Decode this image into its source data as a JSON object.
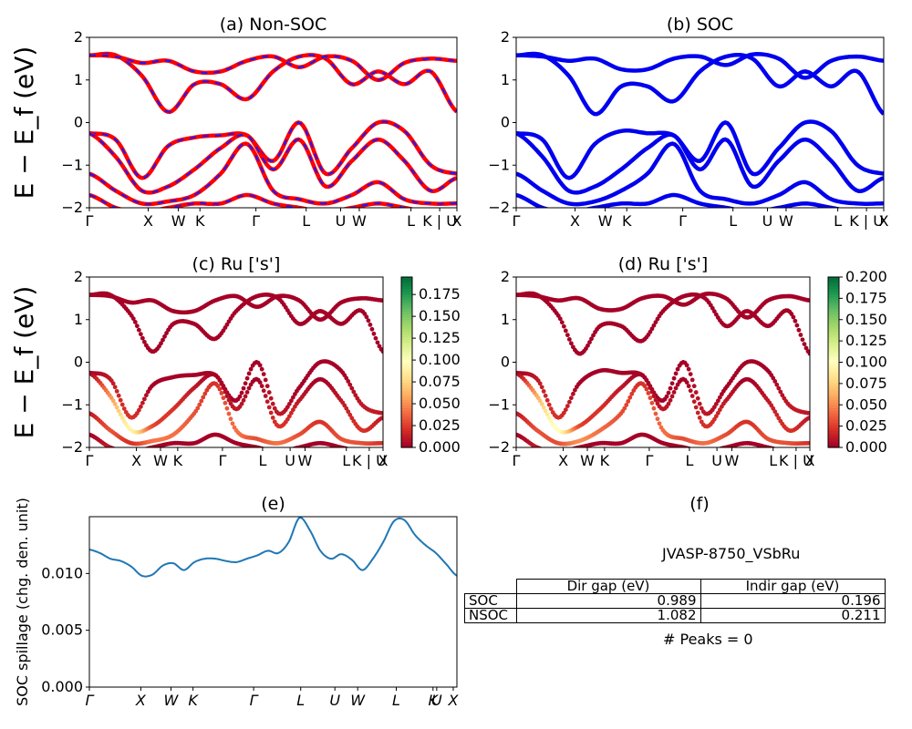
{
  "colors": {
    "nonsoc_a": "#ff0000",
    "nonsoc_b": "#1a1aff",
    "soc": "#0000ee",
    "spillage": "#1f77b4"
  },
  "colorbars": {
    "c": {
      "ticks": [
        "0.000",
        "0.025",
        "0.050",
        "0.075",
        "0.100",
        "0.125",
        "0.150",
        "0.175"
      ],
      "vmax": 0.195,
      "cmap": "RdYlGn"
    },
    "d": {
      "ticks": [
        "0.000",
        "0.025",
        "0.050",
        "0.075",
        "0.100",
        "0.125",
        "0.150",
        "0.175",
        "0.200"
      ],
      "vmax": 0.2,
      "cmap": "RdYlGn"
    }
  },
  "chart_data": [
    {
      "type": "line",
      "title": "(a) Non-SOC",
      "ylabel": "E − E_f (eV)",
      "ylim": [
        -2,
        2
      ],
      "yticks": [
        "2",
        "1",
        "0",
        "−1",
        "−2"
      ],
      "xticks": [
        "Γ",
        "X",
        "W",
        "K",
        "Γ",
        "L",
        "U",
        "W",
        "L",
        "K | U",
        "X"
      ],
      "series": [
        {
          "values": [
            1.58,
            1.58,
            1.1,
            0.25,
            0.9,
            0.9,
            0.55,
            1.2,
            1.55,
            1.5,
            0.9,
            1.2,
            0.9,
            1.2,
            0.25
          ]
        },
        {
          "values": [
            1.58,
            1.55,
            1.4,
            1.45,
            1.2,
            1.2,
            1.45,
            1.55,
            1.3,
            1.55,
            1.45,
            1.0,
            1.4,
            1.5,
            1.45
          ]
        },
        {
          "values": [
            -0.25,
            -0.4,
            -1.3,
            -0.55,
            -0.35,
            -0.3,
            -0.3,
            -0.9,
            0.0,
            -1.2,
            -0.6,
            0.0,
            -0.2,
            -1.0,
            -1.2
          ]
        },
        {
          "values": [
            -0.25,
            -0.8,
            -1.6,
            -1.5,
            -1.1,
            -0.6,
            -0.3,
            -1.1,
            -0.4,
            -1.5,
            -0.9,
            -0.4,
            -0.9,
            -1.6,
            -1.3
          ]
        },
        {
          "values": [
            -1.2,
            -1.6,
            -1.9,
            -1.85,
            -1.7,
            -1.2,
            -0.5,
            -1.6,
            -1.8,
            -1.9,
            -1.7,
            -1.4,
            -1.8,
            -1.9,
            -1.9
          ]
        },
        {
          "values": [
            -1.7,
            -2.0,
            -2.1,
            -2.0,
            -1.9,
            -1.9,
            -1.7,
            -1.9,
            -2.0,
            -2.1,
            -2.0,
            -1.9,
            -2.0,
            -2.1,
            -2.1
          ]
        }
      ]
    },
    {
      "type": "line",
      "title": "(b) SOC",
      "ylim": [
        -2,
        2
      ],
      "yticks": [
        "2",
        "1",
        "0",
        "−1",
        "−2"
      ],
      "xticks": [
        "Γ",
        "X",
        "W",
        "K",
        "Γ",
        "L",
        "U",
        "W",
        "L",
        "K | U",
        "X"
      ],
      "series": [
        {
          "values": [
            1.58,
            1.58,
            1.1,
            0.2,
            0.85,
            0.85,
            0.5,
            1.2,
            1.55,
            1.5,
            0.85,
            1.2,
            0.85,
            1.2,
            0.2
          ]
        },
        {
          "values": [
            1.58,
            1.55,
            1.45,
            1.5,
            1.25,
            1.25,
            1.5,
            1.55,
            1.35,
            1.6,
            1.5,
            1.05,
            1.45,
            1.55,
            1.45
          ]
        },
        {
          "values": [
            -0.25,
            -0.4,
            -1.3,
            -0.5,
            -0.2,
            -0.25,
            -0.3,
            -0.9,
            0.0,
            -1.2,
            -0.6,
            0.0,
            -0.2,
            -1.0,
            -1.2
          ]
        },
        {
          "values": [
            -0.25,
            -0.8,
            -1.6,
            -1.5,
            -1.1,
            -0.6,
            -0.3,
            -1.1,
            -0.4,
            -1.5,
            -0.9,
            -0.4,
            -0.9,
            -1.6,
            -1.3
          ]
        },
        {
          "values": [
            -1.2,
            -1.6,
            -1.9,
            -1.85,
            -1.6,
            -1.2,
            -0.5,
            -1.6,
            -1.8,
            -1.9,
            -1.7,
            -1.4,
            -1.8,
            -1.9,
            -1.9
          ]
        },
        {
          "values": [
            -1.7,
            -2.0,
            -2.1,
            -2.0,
            -1.9,
            -1.9,
            -1.7,
            -1.9,
            -2.0,
            -2.1,
            -2.0,
            -1.9,
            -2.0,
            -2.1,
            -2.1
          ]
        }
      ]
    },
    {
      "type": "scatter",
      "title": "(c)  Ru ['s']",
      "ylabel": "E − E_f (eV)",
      "ylim": [
        -2,
        2
      ],
      "yticks": [
        "2",
        "1",
        "0",
        "−1",
        "−2"
      ],
      "xticks": [
        "Γ",
        "X",
        "W",
        "K",
        "Γ",
        "L",
        "U",
        "W",
        "L",
        "K | U",
        "X"
      ],
      "series": [
        {
          "values": [
            1.58,
            1.58,
            1.1,
            0.25,
            0.9,
            0.9,
            0.55,
            1.2,
            1.55,
            1.5,
            0.9,
            1.2,
            0.9,
            1.2,
            0.25
          ],
          "weights": [
            0.0,
            0.0,
            0.0,
            0.0,
            0.0,
            0.0,
            0.0,
            0.0,
            0.0,
            0.0,
            0.0,
            0.0,
            0.0,
            0.0,
            0.0
          ]
        },
        {
          "values": [
            1.58,
            1.55,
            1.4,
            1.45,
            1.2,
            1.2,
            1.45,
            1.55,
            1.3,
            1.55,
            1.45,
            1.0,
            1.4,
            1.5,
            1.45
          ],
          "weights": [
            0.0,
            0.0,
            0.0,
            0.0,
            0.0,
            0.0,
            0.0,
            0.0,
            0.0,
            0.0,
            0.0,
            0.0,
            0.0,
            0.0,
            0.0
          ]
        },
        {
          "values": [
            -0.25,
            -0.4,
            -1.3,
            -0.55,
            -0.35,
            -0.3,
            -0.3,
            -0.9,
            0.0,
            -1.2,
            -0.6,
            0.0,
            -0.2,
            -1.0,
            -1.2
          ],
          "weights": [
            0.0,
            0.01,
            0.02,
            0.0,
            0.0,
            0.0,
            0.0,
            0.0,
            0.0,
            0.01,
            0.0,
            0.0,
            0.0,
            0.01,
            0.01
          ]
        },
        {
          "values": [
            -0.25,
            -0.8,
            -1.6,
            -1.5,
            -1.1,
            -0.6,
            -0.3,
            -1.1,
            -0.4,
            -1.5,
            -0.9,
            -0.4,
            -0.9,
            -1.6,
            -1.3
          ],
          "weights": [
            0.0,
            0.05,
            0.09,
            0.03,
            0.02,
            0.01,
            0.0,
            0.01,
            0.0,
            0.02,
            0.01,
            0.0,
            0.01,
            0.02,
            0.01
          ]
        },
        {
          "values": [
            -1.2,
            -1.6,
            -1.9,
            -1.85,
            -1.7,
            -1.2,
            -0.5,
            -1.6,
            -1.8,
            -1.9,
            -1.7,
            -1.4,
            -1.8,
            -1.9,
            -1.9
          ],
          "weights": [
            0.01,
            0.03,
            0.02,
            0.04,
            0.04,
            0.03,
            0.02,
            0.04,
            0.03,
            0.04,
            0.03,
            0.02,
            0.03,
            0.03,
            0.02
          ]
        },
        {
          "values": [
            -1.7,
            -2.0,
            -2.1,
            -2.0,
            -1.9,
            -1.9,
            -1.7,
            -1.9,
            -2.0,
            -2.1,
            -2.0,
            -1.9,
            -2.0,
            -2.1,
            -2.1
          ],
          "weights": [
            0.0,
            0.01,
            0.0,
            0.0,
            0.0,
            0.0,
            0.0,
            0.0,
            0.0,
            0.0,
            0.0,
            0.0,
            0.0,
            0.0,
            0.0
          ]
        }
      ]
    },
    {
      "type": "scatter",
      "title": "(d) Ru ['s']",
      "ylim": [
        -2,
        2
      ],
      "yticks": [
        "2",
        "1",
        "0",
        "−1",
        "−2"
      ],
      "xticks": [
        "Γ",
        "X",
        "W",
        "K",
        "Γ",
        "L",
        "U",
        "W",
        "L",
        "K | U",
        "X"
      ],
      "series": [
        {
          "values": [
            1.58,
            1.58,
            1.1,
            0.2,
            0.85,
            0.85,
            0.5,
            1.2,
            1.55,
            1.5,
            0.85,
            1.2,
            0.85,
            1.2,
            0.2
          ],
          "weights": [
            0.0,
            0.0,
            0.0,
            0.0,
            0.0,
            0.0,
            0.0,
            0.0,
            0.0,
            0.0,
            0.0,
            0.0,
            0.0,
            0.0,
            0.0
          ]
        },
        {
          "values": [
            1.58,
            1.55,
            1.45,
            1.5,
            1.25,
            1.25,
            1.5,
            1.55,
            1.35,
            1.6,
            1.5,
            1.05,
            1.45,
            1.55,
            1.45
          ],
          "weights": [
            0.0,
            0.0,
            0.0,
            0.0,
            0.0,
            0.0,
            0.0,
            0.0,
            0.0,
            0.0,
            0.0,
            0.0,
            0.0,
            0.0,
            0.0
          ]
        },
        {
          "values": [
            -0.25,
            -0.4,
            -1.3,
            -0.5,
            -0.2,
            -0.25,
            -0.3,
            -0.9,
            0.0,
            -1.2,
            -0.6,
            0.0,
            -0.2,
            -1.0,
            -1.2
          ],
          "weights": [
            0.0,
            0.01,
            0.02,
            0.0,
            0.0,
            0.0,
            0.0,
            0.0,
            0.0,
            0.01,
            0.0,
            0.0,
            0.0,
            0.01,
            0.01
          ]
        },
        {
          "values": [
            -0.25,
            -0.8,
            -1.6,
            -1.5,
            -1.1,
            -0.6,
            -0.3,
            -1.1,
            -0.4,
            -1.5,
            -0.9,
            -0.4,
            -0.9,
            -1.6,
            -1.3
          ],
          "weights": [
            0.0,
            0.06,
            0.1,
            0.03,
            0.02,
            0.01,
            0.0,
            0.01,
            0.0,
            0.02,
            0.01,
            0.0,
            0.01,
            0.02,
            0.01
          ]
        },
        {
          "values": [
            -1.2,
            -1.6,
            -1.9,
            -1.85,
            -1.6,
            -1.2,
            -0.5,
            -1.6,
            -1.8,
            -1.9,
            -1.7,
            -1.4,
            -1.8,
            -1.9,
            -1.9
          ],
          "weights": [
            0.01,
            0.03,
            0.03,
            0.05,
            0.04,
            0.03,
            0.02,
            0.04,
            0.03,
            0.04,
            0.03,
            0.02,
            0.03,
            0.03,
            0.02
          ]
        },
        {
          "values": [
            -1.7,
            -2.0,
            -2.1,
            -2.0,
            -1.9,
            -1.9,
            -1.7,
            -1.9,
            -2.0,
            -2.1,
            -2.0,
            -1.9,
            -2.0,
            -2.1,
            -2.1
          ],
          "weights": [
            0.0,
            0.01,
            0.0,
            0.0,
            0.0,
            0.0,
            0.0,
            0.0,
            0.0,
            0.0,
            0.0,
            0.0,
            0.0,
            0.0,
            0.0
          ]
        }
      ]
    },
    {
      "type": "line",
      "title": "(e)",
      "ylabel": "SOC spillage (chg. den. unit)",
      "ylim": [
        0,
        0.015
      ],
      "yticks": [
        "0.000",
        "0.005",
        "0.010"
      ],
      "xticks": [
        "Γ",
        "X",
        "W",
        "K",
        "Γ",
        "L",
        "U",
        "W",
        "L",
        "K",
        "U",
        "X"
      ],
      "series": [
        {
          "values": [
            0.0121,
            0.0118,
            0.0113,
            0.0111,
            0.0106,
            0.0098,
            0.0099,
            0.0107,
            0.0109,
            0.0103,
            0.011,
            0.0113,
            0.0113,
            0.0111,
            0.011,
            0.0113,
            0.0116,
            0.012,
            0.0118,
            0.0128,
            0.0149,
            0.0138,
            0.012,
            0.0113,
            0.0117,
            0.0112,
            0.0103,
            0.0113,
            0.0128,
            0.0146,
            0.0147,
            0.0134,
            0.0125,
            0.0118,
            0.0108,
            0.0098
          ]
        }
      ]
    }
  ],
  "panel_f": {
    "title": "(f)",
    "name": "JVASP-8750_VSbRu",
    "headers": [
      "Dir gap (eV)",
      "Indir gap (eV)"
    ],
    "rows": [
      {
        "label": "SOC",
        "dir": "0.989",
        "indir": "0.196"
      },
      {
        "label": "NSOC",
        "dir": "1.082",
        "indir": "0.211"
      }
    ],
    "peaks": "# Peaks = 0"
  }
}
